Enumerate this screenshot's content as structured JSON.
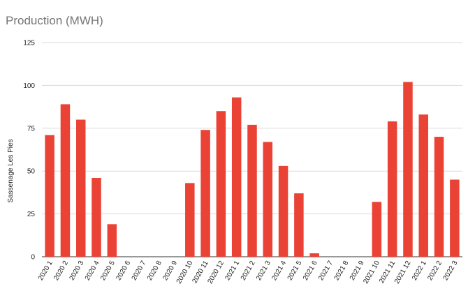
{
  "chart_data": {
    "type": "bar",
    "title": "Production (MWH)",
    "xlabel": "",
    "ylabel": "Sassenage Les Pies",
    "ylim": [
      0,
      125
    ],
    "yticks": [
      0,
      25,
      50,
      75,
      100,
      125
    ],
    "grid": true,
    "color": "#ea4335",
    "categories": [
      "2020 1",
      "2020 2",
      "2020 3",
      "2020 4",
      "2020 5",
      "2020 6",
      "2020 7",
      "2020 8",
      "2020 9",
      "2020 10",
      "2020 11",
      "2020 12",
      "2021 1",
      "2021 2",
      "2021 3",
      "2021 4",
      "2021 5",
      "2021 6",
      "2021 7",
      "2021 8",
      "2021 9",
      "2021 10",
      "2021 11",
      "2021 12",
      "2022 1",
      "2022 2",
      "2022 3"
    ],
    "values": [
      71,
      89,
      80,
      46,
      19,
      0,
      0,
      0,
      0,
      43,
      74,
      85,
      93,
      77,
      67,
      53,
      37,
      2,
      0,
      0,
      0,
      32,
      79,
      102,
      83,
      70,
      45
    ]
  }
}
